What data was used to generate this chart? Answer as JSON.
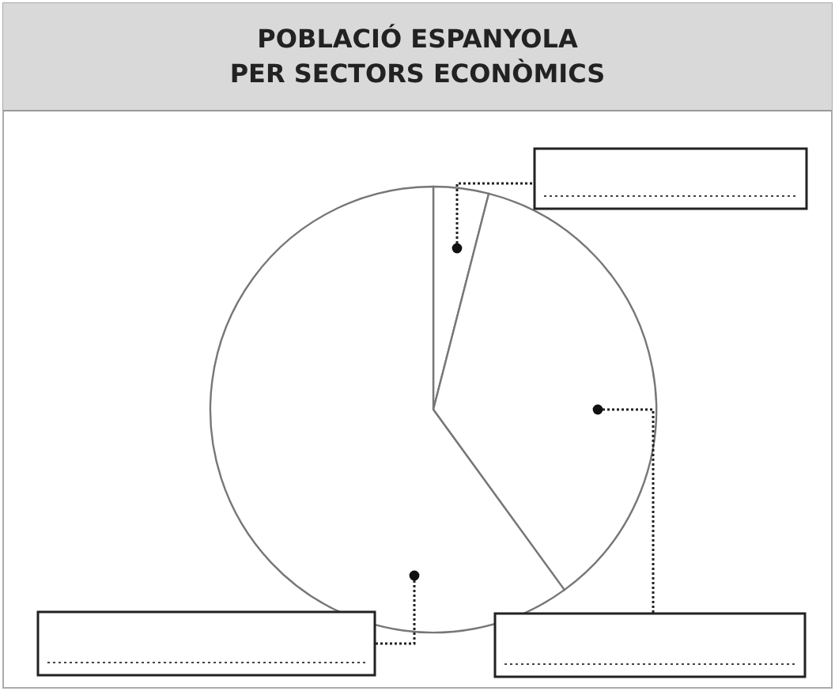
{
  "chart_data": {
    "type": "pie",
    "title": "POBLACIÓ ESPANYOLA\nPER SECTORS ECONÒMICS",
    "categories": [
      null,
      null,
      null
    ],
    "values": [
      4,
      36,
      60
    ],
    "colors": [
      "#ffffff",
      "#ffffff",
      "#ffffff"
    ]
  }
}
